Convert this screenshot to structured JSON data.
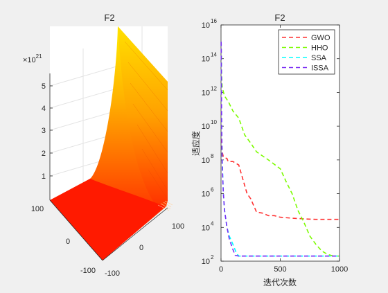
{
  "chart_data": [
    {
      "type": "surface",
      "title": "F2",
      "z_exponent_label": "×10",
      "z_exponent_power": "21",
      "z_ticks": [
        "1",
        "2",
        "3",
        "4",
        "5"
      ],
      "x_ticks": [
        "-100",
        "0",
        "100"
      ],
      "y_ticks": [
        "-100",
        "0",
        "100"
      ],
      "colormap": [
        "#ff0000",
        "#ff6a00",
        "#ffc800",
        "#ffff00"
      ]
    },
    {
      "type": "line",
      "title": "F2",
      "xlabel": "迭代次数",
      "ylabel": "适应度",
      "xlim": [
        0,
        1000
      ],
      "ylim": [
        100,
        1e+16
      ],
      "yscale": "log",
      "x_ticks": [
        "0",
        "500",
        "1000"
      ],
      "y_tick_base": "10",
      "y_tick_powers": [
        "2",
        "4",
        "6",
        "8",
        "10",
        "12",
        "14",
        "16"
      ],
      "legend_position": "top-right",
      "series": [
        {
          "name": "GWO",
          "color": "#ff3030",
          "x": [
            1,
            5,
            10,
            20,
            50,
            60,
            100,
            150,
            200,
            220,
            250,
            300,
            350,
            400,
            450,
            500,
            600,
            700,
            800,
            900,
            1000
          ],
          "y": [
            1000000000000000.0,
            1000000000.0,
            300000000.0,
            150000000.0,
            120000000.0,
            80000000.0,
            80000000.0,
            50000000.0,
            3000000.0,
            1000000.0,
            500000.0,
            80000.0,
            70000.0,
            50000.0,
            50000.0,
            40000.0,
            35000.0,
            32000.0,
            30000.0,
            30000.0,
            30000.0
          ]
        },
        {
          "name": "HHO",
          "color": "#7cfc00",
          "x": [
            1,
            5,
            10,
            30,
            60,
            100,
            150,
            200,
            250,
            300,
            400,
            500,
            550,
            600,
            650,
            700,
            750,
            800,
            850,
            900,
            950,
            1000
          ],
          "y": [
            1000000000000000.0,
            10000000000000.0,
            2000000000000.0,
            600000000000.0,
            300000000000.0,
            80000000000.0,
            30000000000.0,
            3000000000.0,
            1000000000.0,
            300000000.0,
            100000000.0,
            30000000.0,
            5000000.0,
            1000000.0,
            100000.0,
            20000.0,
            3000.0,
            1000.0,
            400.0,
            250.0,
            200.0,
            200.0
          ]
        },
        {
          "name": "SSA",
          "color": "#00ffff",
          "x": [
            1,
            5,
            10,
            20,
            30,
            50,
            70,
            100,
            130,
            150,
            200,
            300,
            500,
            700,
            1000
          ],
          "y": [
            1000000000000000.0,
            10000000000.0,
            100000000.0,
            1000000.0,
            100000.0,
            10000.0,
            3000.0,
            1000.0,
            300.0,
            200.0,
            200.0,
            200.0,
            200.0,
            200.0,
            200.0
          ]
        },
        {
          "name": "ISSA",
          "color": "#7b2cf5",
          "x": [
            1,
            5,
            10,
            20,
            30,
            50,
            70,
            100,
            120,
            150,
            200,
            300,
            500,
            700,
            1000
          ],
          "y": [
            1000000000000000.0,
            10000000000.0,
            50000000.0,
            1000000.0,
            100000.0,
            10000.0,
            2000.0,
            500.0,
            220.0,
            200.0,
            200.0,
            200.0,
            200.0,
            200.0,
            200.0
          ]
        }
      ]
    }
  ]
}
